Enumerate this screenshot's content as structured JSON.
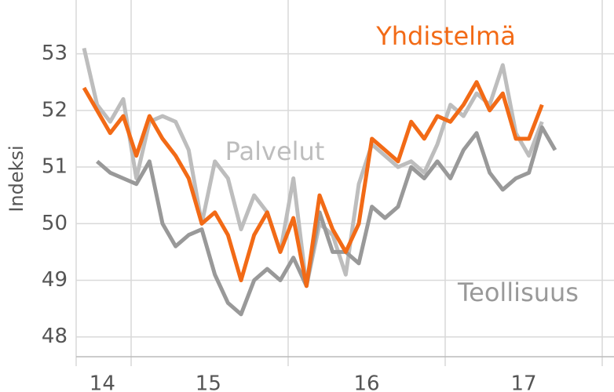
{
  "chart_data": {
    "type": "line",
    "y_label": "Indeksi",
    "x": [
      0,
      1,
      2,
      3,
      4,
      5,
      6,
      7,
      8,
      9,
      10,
      11,
      12,
      13,
      14,
      15,
      16,
      17,
      18,
      19,
      20,
      21,
      22,
      23,
      24,
      25,
      26,
      27,
      28,
      29,
      30,
      31,
      32,
      33,
      34,
      35,
      36
    ],
    "series": [
      {
        "name": "Palvelut",
        "color": "#bdbdbd",
        "values": [
          53.1,
          52.1,
          51.8,
          52.2,
          50.8,
          51.8,
          51.9,
          51.8,
          51.3,
          50.0,
          51.1,
          50.8,
          49.9,
          50.5,
          50.2,
          49.5,
          50.8,
          48.9,
          50.0,
          49.8,
          49.1,
          50.7,
          51.4,
          51.2,
          51.0,
          51.1,
          50.9,
          51.4,
          52.1,
          51.9,
          52.3,
          52.1,
          52.8,
          51.6,
          51.2,
          51.8,
          null
        ]
      },
      {
        "name": "Teollisuus",
        "color": "#999999",
        "values": [
          null,
          51.1,
          50.9,
          50.8,
          50.7,
          51.1,
          50.0,
          49.6,
          49.8,
          49.9,
          49.1,
          48.6,
          48.4,
          49.0,
          49.2,
          49.0,
          49.4,
          48.9,
          50.2,
          49.5,
          49.5,
          49.3,
          50.3,
          50.1,
          50.3,
          51.0,
          50.8,
          51.1,
          50.8,
          51.3,
          51.6,
          50.9,
          50.6,
          50.8,
          50.9,
          51.7,
          51.3
        ]
      },
      {
        "name": "Yhdistelmä",
        "color": "#f26a16",
        "values": [
          52.4,
          52.0,
          51.6,
          51.9,
          51.2,
          51.9,
          51.5,
          51.2,
          50.8,
          50.0,
          50.2,
          49.8,
          49.0,
          49.8,
          50.2,
          49.5,
          50.1,
          48.9,
          50.5,
          49.9,
          49.5,
          50.0,
          51.5,
          51.3,
          51.1,
          51.8,
          51.5,
          51.9,
          51.8,
          52.1,
          52.5,
          52.0,
          52.3,
          51.5,
          51.5,
          52.1,
          null
        ]
      }
    ],
    "xlim": [
      -0.6,
      40.5
    ],
    "xticks": [
      {
        "value": 1.4,
        "label": "14"
      },
      {
        "value": 9.5,
        "label": "15"
      },
      {
        "value": 21.6,
        "label": "16"
      },
      {
        "value": 33.6,
        "label": "17"
      }
    ],
    "xgrid": [
      -0.6,
      3.6,
      15.6,
      27.6,
      39.6
    ],
    "ylim": [
      47.65,
      53.95
    ],
    "yticks": [
      48,
      49,
      50,
      51,
      52,
      53
    ],
    "grid": true
  }
}
